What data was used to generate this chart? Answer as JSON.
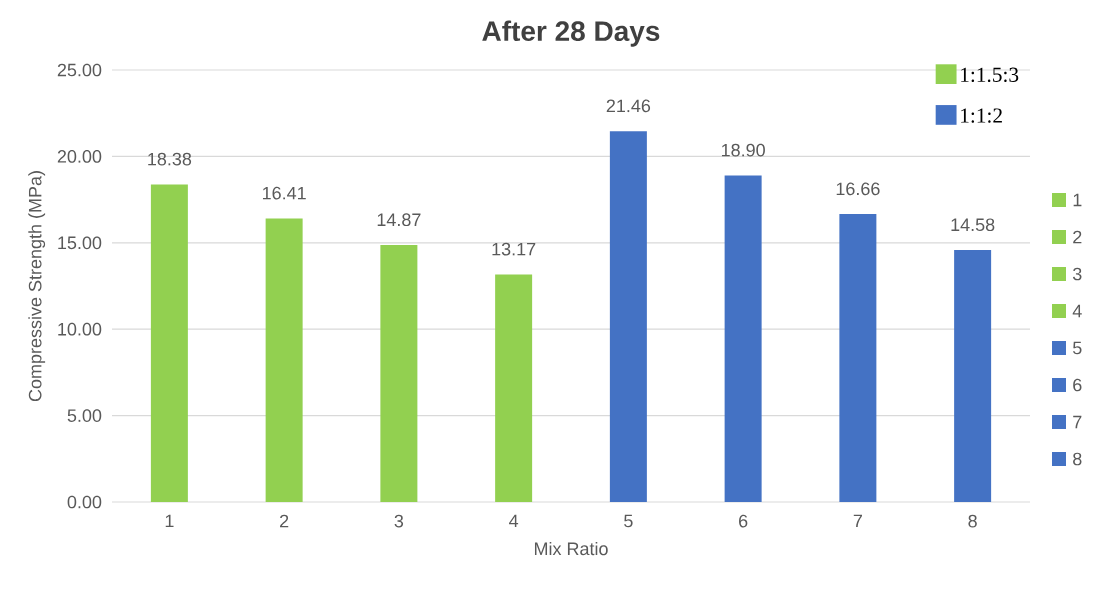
{
  "chart_data": {
    "type": "bar",
    "title": "After 28 Days",
    "xlabel": "Mix Ratio",
    "ylabel": "Compressive Strength (MPa)",
    "categories": [
      "1",
      "2",
      "3",
      "4",
      "5",
      "6",
      "7",
      "8"
    ],
    "series": [
      {
        "name": "1:1.5:3",
        "color": "#92d050",
        "values": [
          18.38,
          16.41,
          14.87,
          13.17,
          null,
          null,
          null,
          null
        ],
        "value_labels": [
          "18.38",
          "16.41",
          "14.87",
          "13.17",
          null,
          null,
          null,
          null
        ]
      },
      {
        "name": "1:1:2",
        "color": "#4472c4",
        "values": [
          null,
          null,
          null,
          null,
          21.46,
          18.9,
          16.66,
          14.58
        ],
        "value_labels": [
          null,
          null,
          null,
          null,
          "21.46",
          "18.90",
          "16.66",
          "14.58"
        ]
      }
    ],
    "ylim": [
      0,
      25
    ],
    "yticks": [
      {
        "value": 0,
        "label": "0.00"
      },
      {
        "value": 5,
        "label": "5.00"
      },
      {
        "value": 10,
        "label": "10.00"
      },
      {
        "value": 15,
        "label": "15.00"
      },
      {
        "value": 20,
        "label": "20.00"
      },
      {
        "value": 25,
        "label": "25.00"
      }
    ],
    "grid": "y",
    "legend": "top right"
  }
}
